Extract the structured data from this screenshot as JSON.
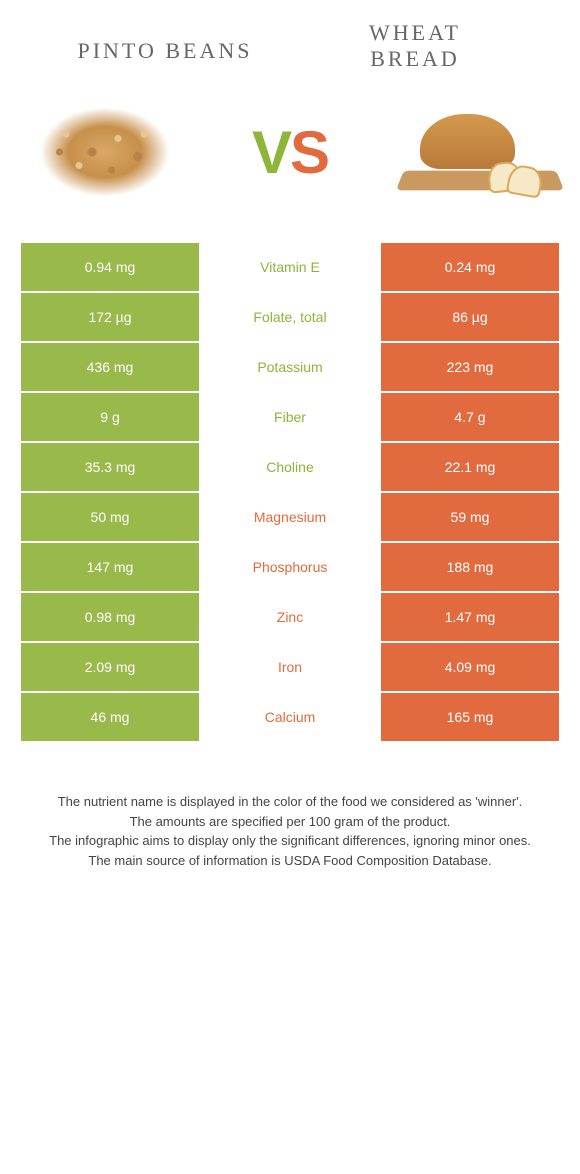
{
  "header": {
    "left_title": "PINTO BEANS",
    "right_title_line1": "WHEAT",
    "right_title_line2": "BREAD",
    "vs_v": "V",
    "vs_s": "S"
  },
  "colors": {
    "green": "#8fb43a",
    "green_cell": "#99b94b",
    "orange": "#e16b3e",
    "white": "#ffffff"
  },
  "rows": [
    {
      "left": "0.94 mg",
      "nutrient": "Vitamin E",
      "winner": "green",
      "right": "0.24 mg"
    },
    {
      "left": "172 µg",
      "nutrient": "Folate, total",
      "winner": "green",
      "right": "86 µg"
    },
    {
      "left": "436 mg",
      "nutrient": "Potassium",
      "winner": "green",
      "right": "223 mg"
    },
    {
      "left": "9 g",
      "nutrient": "Fiber",
      "winner": "green",
      "right": "4.7 g"
    },
    {
      "left": "35.3 mg",
      "nutrient": "Choline",
      "winner": "green",
      "right": "22.1 mg"
    },
    {
      "left": "50 mg",
      "nutrient": "Magnesium",
      "winner": "orange",
      "right": "59 mg"
    },
    {
      "left": "147 mg",
      "nutrient": "Phosphorus",
      "winner": "orange",
      "right": "188 mg"
    },
    {
      "left": "0.98 mg",
      "nutrient": "Zinc",
      "winner": "orange",
      "right": "1.47 mg"
    },
    {
      "left": "2.09 mg",
      "nutrient": "Iron",
      "winner": "orange",
      "right": "4.09 mg"
    },
    {
      "left": "46 mg",
      "nutrient": "Calcium",
      "winner": "orange",
      "right": "165 mg"
    }
  ],
  "footer": {
    "line1": "The nutrient name is displayed in the color of the food we considered as 'winner'.",
    "line2": "The amounts are specified per 100 gram of the product.",
    "line3": "The infographic aims to display only the significant differences, ignoring minor ones.",
    "line4": "The main source of information is USDA Food Composition Database."
  }
}
